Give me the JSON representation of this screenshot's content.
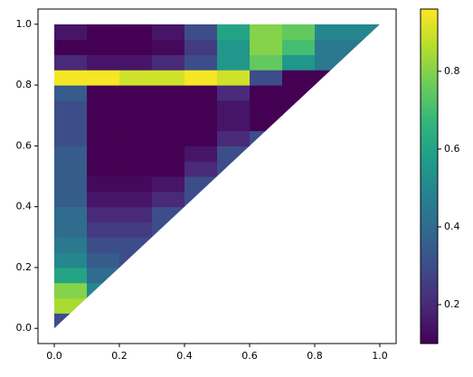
{
  "chart_data": {
    "type": "heatmap",
    "xbins": [
      0,
      0.1,
      0.2,
      0.3,
      0.4,
      0.5,
      0.6,
      0.7,
      0.8,
      0.9,
      1.0
    ],
    "ybins": [
      0,
      0.05,
      0.1,
      0.15,
      0.2,
      0.25,
      0.3,
      0.35,
      0.4,
      0.45,
      0.5,
      0.55,
      0.6,
      0.65,
      0.7,
      0.75,
      0.8,
      0.85,
      0.9,
      0.95,
      1.0
    ],
    "z": [
      [
        0.3,
        null,
        null,
        null,
        null,
        null,
        null,
        null,
        null,
        null
      ],
      [
        0.85,
        null,
        null,
        null,
        null,
        null,
        null,
        null,
        null,
        null
      ],
      [
        0.8,
        0.5,
        null,
        null,
        null,
        null,
        null,
        null,
        null,
        null
      ],
      [
        0.6,
        0.4,
        null,
        null,
        null,
        null,
        null,
        null,
        null,
        null
      ],
      [
        0.5,
        0.35,
        0.3,
        null,
        null,
        null,
        null,
        null,
        null,
        null
      ],
      [
        0.45,
        0.3,
        0.3,
        null,
        null,
        null,
        null,
        null,
        null,
        null
      ],
      [
        0.4,
        0.25,
        0.25,
        0.3,
        null,
        null,
        null,
        null,
        null,
        null
      ],
      [
        0.4,
        0.2,
        0.2,
        0.3,
        null,
        null,
        null,
        null,
        null,
        null
      ],
      [
        0.35,
        0.15,
        0.15,
        0.2,
        0.3,
        null,
        null,
        null,
        null,
        null
      ],
      [
        0.35,
        0.12,
        0.12,
        0.15,
        0.3,
        null,
        null,
        null,
        null,
        null
      ],
      [
        0.35,
        0.1,
        0.1,
        0.1,
        0.2,
        0.3,
        null,
        null,
        null,
        null
      ],
      [
        0.35,
        0.08,
        0.08,
        0.08,
        0.15,
        0.3,
        null,
        null,
        null,
        null
      ],
      [
        0.3,
        0.06,
        0.05,
        0.05,
        0.08,
        0.2,
        0.3,
        null,
        null,
        null
      ],
      [
        0.3,
        0.05,
        0.04,
        0.04,
        0.05,
        0.15,
        0.1,
        null,
        null,
        null
      ],
      [
        0.3,
        0.05,
        0.04,
        0.04,
        0.05,
        0.15,
        0.03,
        0.03,
        null,
        null
      ],
      [
        0.35,
        0.1,
        0.08,
        0.08,
        0.1,
        0.2,
        0.03,
        0.03,
        null,
        null
      ],
      [
        0.95,
        0.95,
        0.9,
        0.9,
        0.95,
        0.9,
        0.3,
        0.05,
        0.05,
        null
      ],
      [
        0.2,
        0.15,
        0.15,
        0.2,
        0.3,
        0.55,
        0.75,
        0.55,
        0.45,
        null
      ],
      [
        0.1,
        0.08,
        0.08,
        0.12,
        0.25,
        0.55,
        0.8,
        0.7,
        0.45,
        0.45
      ],
      [
        0.15,
        0.1,
        0.1,
        0.15,
        0.3,
        0.6,
        0.8,
        0.75,
        0.5,
        0.5
      ]
    ],
    "xlim": [
      -0.05,
      1.05
    ],
    "ylim": [
      -0.05,
      1.05
    ],
    "xticks": [
      {
        "value": 0,
        "label": "0.0"
      },
      {
        "value": 0.2,
        "label": "0.2"
      },
      {
        "value": 0.4,
        "label": "0.4"
      },
      {
        "value": 0.6,
        "label": "0.6"
      },
      {
        "value": 0.8,
        "label": "0.8"
      },
      {
        "value": 1.0,
        "label": "1.0"
      }
    ],
    "yticks": [
      {
        "value": 0,
        "label": "0.0"
      },
      {
        "value": 0.2,
        "label": "0.2"
      },
      {
        "value": 0.4,
        "label": "0.4"
      },
      {
        "value": 0.6,
        "label": "0.6"
      },
      {
        "value": 0.8,
        "label": "0.8"
      },
      {
        "value": 1.0,
        "label": "1.0"
      }
    ],
    "clim": [
      0.1,
      0.96
    ],
    "cticks": [
      0.2,
      0.4,
      0.6,
      0.8
    ],
    "colormap": "viridis"
  }
}
